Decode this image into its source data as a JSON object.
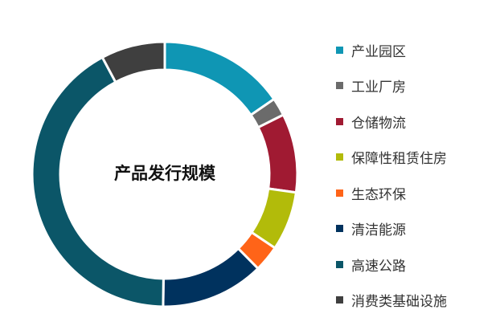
{
  "chart_data": {
    "type": "pie",
    "donut": true,
    "title": "产品发行规模",
    "start_angle": "top, clockwise",
    "legend_position": "right",
    "categories": [
      "产业园区",
      "工业厂房",
      "仓储物流",
      "保障性租赁住房",
      "生态环保",
      "清洁能源",
      "高速公路",
      "消费类基础设施"
    ],
    "values": [
      15.4,
      2.2,
      9.6,
      7.2,
      3.2,
      12.6,
      42.0,
      7.8
    ],
    "unit": "%",
    "colors": [
      "#0f96b4",
      "#6b6b6b",
      "#a01a32",
      "#b2bb0a",
      "#ff6418",
      "#00325e",
      "#0b5668",
      "#3f3f3f"
    ]
  }
}
